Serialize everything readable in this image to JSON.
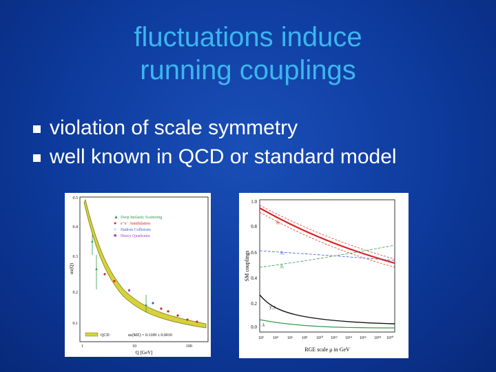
{
  "slide": {
    "title_line1": "fluctuations induce",
    "title_line2": "running couplings",
    "bullets": [
      "violation of scale symmetry",
      "well known in QCD or standard model"
    ]
  },
  "figure_left": {
    "ylabel": "αs(Q)",
    "xlabel": "Q [GeV]",
    "legend": [
      "Deep Inelastic Scattering",
      "e⁺e⁻ Annihilation",
      "Hadron Collisions",
      "Heavy Quarkonia"
    ],
    "band_label": "QCD",
    "fit_label": "αs(MZ) = 0.1189 ± 0.0010",
    "y_ticks": [
      "0.5",
      "0.4",
      "0.3",
      "0.2",
      "0.1"
    ],
    "x_ticks": [
      "1",
      "10",
      "100"
    ]
  },
  "figure_right": {
    "ylabel": "SM couplings",
    "xlabel": "RGE scale μ in GeV",
    "y_ticks": [
      "1.0",
      "0.8",
      "0.6",
      "0.4",
      "0.2",
      "0.0"
    ],
    "x_ticks": [
      "10²",
      "10⁴",
      "10⁶",
      "10⁸",
      "10¹⁰",
      "10¹²",
      "10¹⁴",
      "10¹⁶",
      "10¹⁸",
      "10²⁰"
    ],
    "curve_labels": [
      "g₃",
      "g₂",
      "g₁",
      "y_t",
      "λ"
    ]
  },
  "colors": {
    "title": "#3cb6f0",
    "red": "#d82020",
    "blue": "#3a5cc8",
    "green": "#2f9a4a",
    "black": "#111111",
    "band": "#d6d23a"
  }
}
